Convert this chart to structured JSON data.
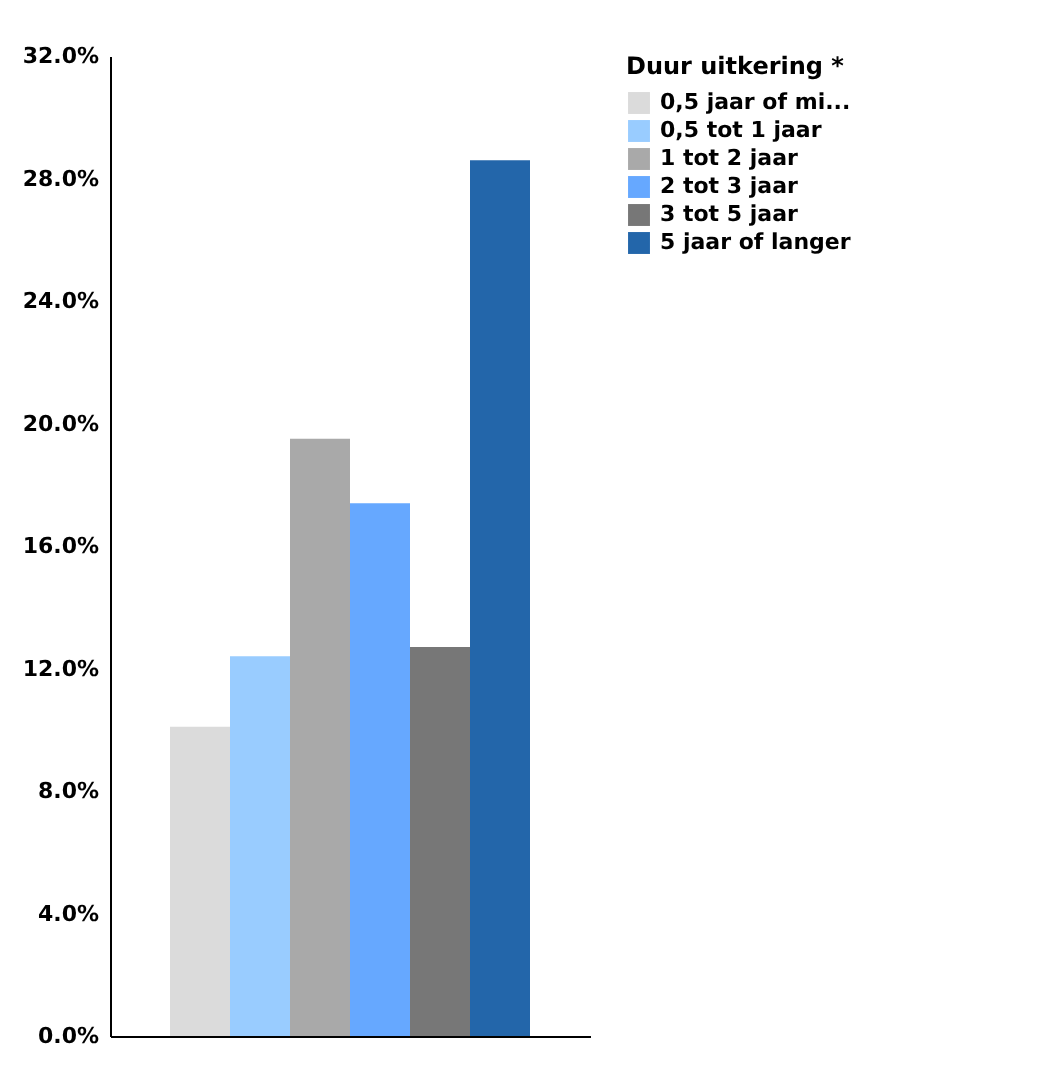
{
  "chart_data": {
    "type": "bar",
    "legend_title": "Duur uitkering *",
    "categories": [
      null
    ],
    "series": [
      {
        "name": "0,5 jaar of mi...",
        "color": "#dbdbdb",
        "values": [
          10.1
        ]
      },
      {
        "name": "0,5 tot 1 jaar",
        "color": "#99ccff",
        "values": [
          12.4
        ]
      },
      {
        "name": "1 tot 2 jaar",
        "color": "#a9a9a9",
        "values": [
          19.5
        ]
      },
      {
        "name": "2 tot 3 jaar",
        "color": "#66a8ff",
        "values": [
          17.4
        ]
      },
      {
        "name": "3 tot 5 jaar",
        "color": "#777777",
        "values": [
          12.7
        ]
      },
      {
        "name": "5 jaar of langer",
        "color": "#2366aa",
        "values": [
          28.6
        ]
      }
    ],
    "ylim": [
      0,
      32
    ],
    "yticks": [
      {
        "value": 0,
        "label": "0.0%"
      },
      {
        "value": 4,
        "label": "4.0%"
      },
      {
        "value": 8,
        "label": "8.0%"
      },
      {
        "value": 12,
        "label": "12.0%"
      },
      {
        "value": 16,
        "label": "16.0%"
      },
      {
        "value": 20,
        "label": "20.0%"
      },
      {
        "value": 24,
        "label": "24.0%"
      },
      {
        "value": 28,
        "label": "28.0%"
      },
      {
        "value": 32,
        "label": "32.0%"
      }
    ],
    "grid": false,
    "legend": "top right"
  }
}
